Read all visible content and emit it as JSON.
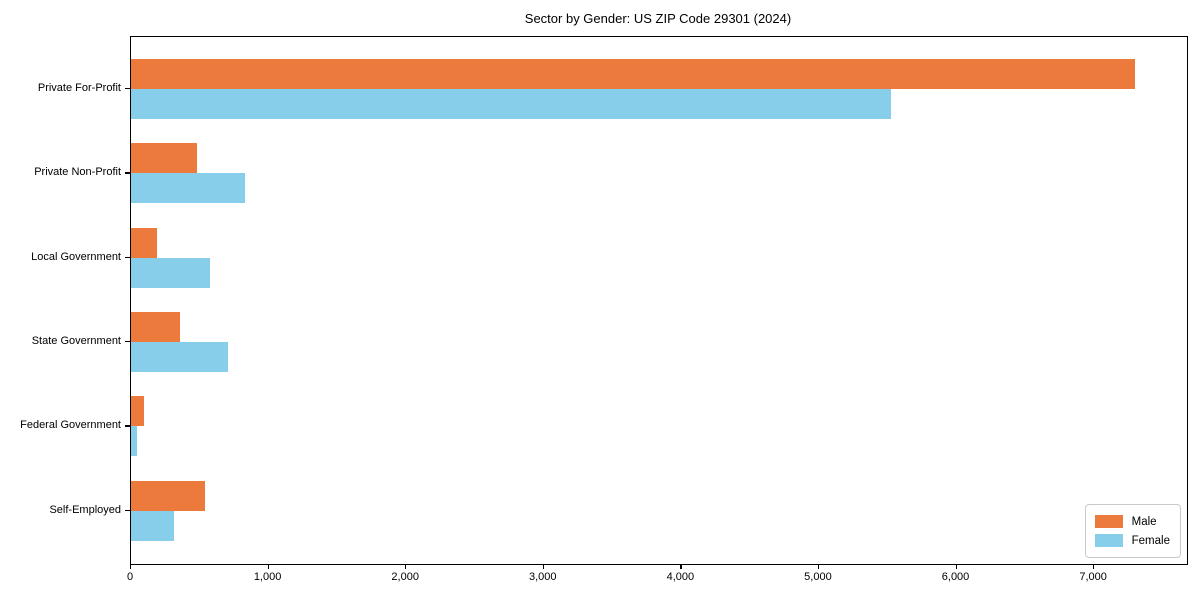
{
  "chart_data": {
    "type": "bar",
    "orientation": "horizontal",
    "title": "Sector by Gender: US ZIP Code 29301 (2024)",
    "categories": [
      "Private For-Profit",
      "Private Non-Profit",
      "Local Government",
      "State Government",
      "Federal Government",
      "Self-Employed"
    ],
    "series": [
      {
        "name": "Male",
        "color": "#EC7A3C",
        "values": [
          7300,
          480,
          190,
          355,
          95,
          540
        ]
      },
      {
        "name": "Female",
        "color": "#86CEEA",
        "values": [
          5520,
          830,
          575,
          705,
          45,
          310
        ]
      }
    ],
    "xlim": [
      0,
      7675
    ],
    "xticks": [
      0,
      1000,
      2000,
      3000,
      4000,
      5000,
      6000,
      7000
    ],
    "xtick_labels": [
      "0",
      "1,000",
      "2,000",
      "3,000",
      "4,000",
      "5,000",
      "6,000",
      "7,000"
    ],
    "xlabel": "",
    "ylabel": "",
    "grid": false,
    "legend": {
      "position": "lower right",
      "entries": [
        "Male",
        "Female"
      ]
    }
  }
}
